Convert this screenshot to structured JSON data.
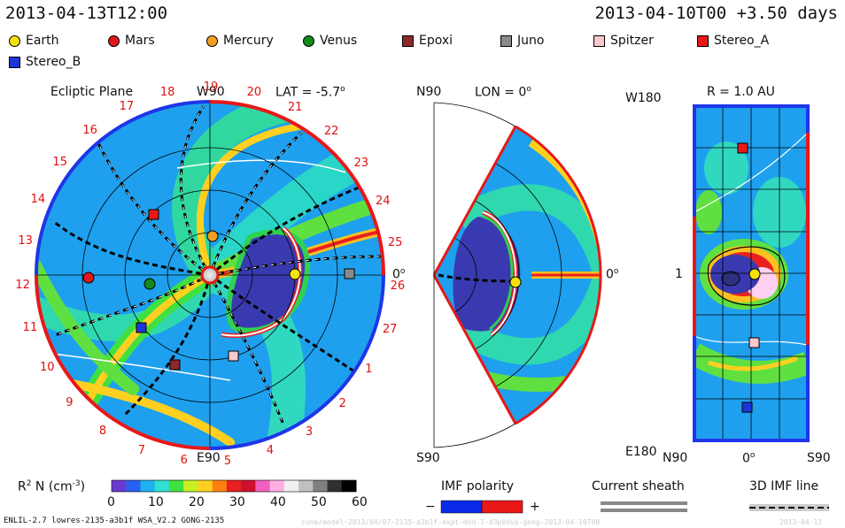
{
  "header": {
    "left_time": "2013-04-13T12:00",
    "right_time": "2013-04-10T00 +3.50 days"
  },
  "legend": [
    {
      "label": "Earth",
      "shape": "circle",
      "color": "#f5e20a"
    },
    {
      "label": "Mars",
      "shape": "circle",
      "color": "#e01818"
    },
    {
      "label": "Mercury",
      "shape": "circle",
      "color": "#f0a020"
    },
    {
      "label": "Venus",
      "shape": "circle",
      "color": "#138a1a"
    },
    {
      "label": "Epoxi",
      "shape": "square",
      "color": "#8b2a2a"
    },
    {
      "label": "Juno",
      "shape": "square",
      "color": "#8a8a8a"
    },
    {
      "label": "Spitzer",
      "shape": "square",
      "color": "#f8c8cc"
    },
    {
      "label": "Stereo_A",
      "shape": "square",
      "color": "#e81818"
    },
    {
      "label": "Stereo_B",
      "shape": "square",
      "color": "#1e36d8"
    }
  ],
  "panels": {
    "ecliptic": {
      "title": "Ecliptic Plane",
      "top_label": "W90",
      "lat": "LAT = -5.7",
      "lat_sup": "o",
      "right_label": "0",
      "right_sup": "o",
      "bottom_label": "E90",
      "sector_numbers": [
        "19",
        "20",
        "21",
        "22",
        "23",
        "24",
        "25",
        "26",
        "27",
        "1",
        "2",
        "3",
        "4",
        "5",
        "6",
        "7",
        "8",
        "9",
        "10",
        "11",
        "12",
        "13",
        "14",
        "15",
        "16",
        "17",
        "18"
      ]
    },
    "meridional": {
      "top_left": "N90",
      "lon": "LON = 0",
      "lon_sup": "o",
      "right_label": "0",
      "right_sup": "o",
      "bottom_left": "S90"
    },
    "shell": {
      "title": "R = 1.0 AU",
      "top_left": "W180",
      "mid_left": "1",
      "bottom_left": "E180",
      "x_left": "N90",
      "x_mid": "0",
      "x_mid_sup": "o",
      "x_right": "S90"
    }
  },
  "colorbar": {
    "label": "R",
    "label_sup": "2",
    "label_rest": " N (cm",
    "label_exp": "-3",
    "label_close": ")",
    "ticks": [
      "0",
      "10",
      "20",
      "30",
      "40",
      "50",
      "60"
    ],
    "colors": [
      "#6a3ad0",
      "#2a60f0",
      "#20b0f0",
      "#30e0d0",
      "#40e040",
      "#c8f020",
      "#ffd020",
      "#ff8010",
      "#e82020",
      "#d01030",
      "#f060c0",
      "#ffb0e0",
      "#f0f0f0",
      "#c0c0c0",
      "#808080",
      "#303030",
      "#000000"
    ]
  },
  "imf_polarity": {
    "title": "IMF polarity",
    "minus": "−",
    "plus": "+",
    "neg_color": "#0a2ae8",
    "pos_color": "#e81818"
  },
  "current_sheath": {
    "title": "Current sheath"
  },
  "imf_line": {
    "title": "3D IMF line"
  },
  "footer": {
    "left": "ENLIL-2.7 lowres-2135-a3b1f WSA_V2.2 GONG-2135",
    "faint_mid": "cone/model-2013/04/07-2135-a3b1f-expt-mhd-1-d3p0dvp-gong-2013-04-10T00",
    "faint_right": "2013-04-11"
  }
}
